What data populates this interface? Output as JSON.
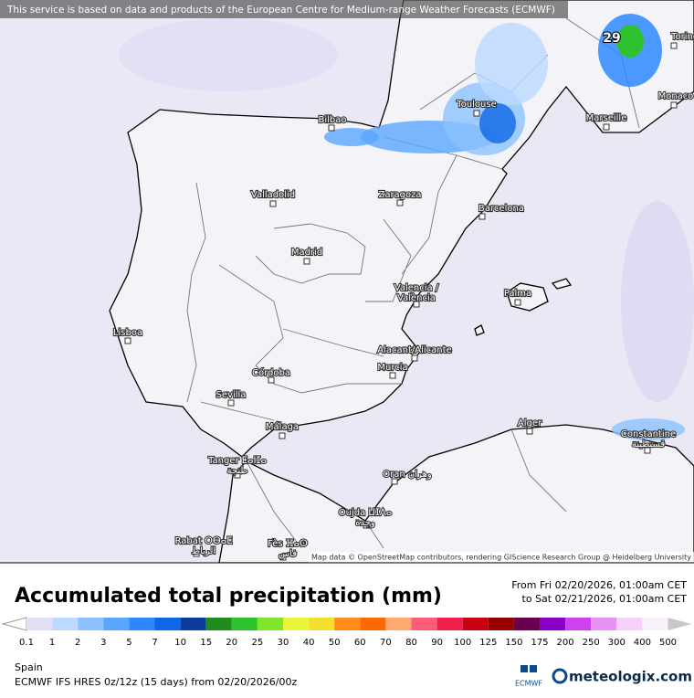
{
  "banner": "This service is based on data and products of the European Centre for Medium-range Weather Forecasts (ECMWF)",
  "map": {
    "max_value": "29",
    "attribution": "Map data © OpenStreetMap contributors, rendering GIScience Research Group @ Heidelberg University",
    "cities": [
      [
        "Bilbao"
      ],
      [
        "Toulouse"
      ],
      [
        "Marseille"
      ],
      [
        "Monaco"
      ],
      [
        "Torino"
      ],
      [
        "Valladolid"
      ],
      [
        "Zaragoza"
      ],
      [
        "Barcelona"
      ],
      [
        "Madrid"
      ],
      [
        "Valencia /",
        "València"
      ],
      [
        "Palma"
      ],
      [
        "Lisboa"
      ],
      [
        "Alacant/Alicante"
      ],
      [
        "Murcia"
      ],
      [
        "Córdoba"
      ],
      [
        "Sevilla"
      ],
      [
        "Málaga"
      ],
      [
        "Tanger ⵟⴰⵏⵊⴰ",
        "طنجة"
      ],
      [
        "Oran وهران"
      ],
      [
        "Oujda ⵡⵊⴷⴰ",
        "وجدة"
      ],
      [
        "Rabat ⵔⴱⴰⵟ",
        "الرباط"
      ],
      [
        "Fès ⴼⴰⵙ",
        "فاس"
      ],
      [
        "Alger"
      ],
      [
        "Constantine",
        "قسنطينة"
      ]
    ]
  },
  "panel": {
    "title": "Accumulated total precipitation (mm)",
    "from": "From Fri 02/20/2026, 01:00am CET",
    "to": "to Sat 02/21/2026, 01:00am CET",
    "region": "Spain",
    "model": "ECMWF IFS HRES 0z/12z (15 days) from  02/20/2026/00z",
    "logo_left": "ECMWF",
    "logo_right": "meteologix.com"
  },
  "legend": {
    "labels": [
      "0.1",
      "1",
      "2",
      "3",
      "5",
      "7",
      "10",
      "15",
      "20",
      "25",
      "30",
      "40",
      "50",
      "60",
      "70",
      "80",
      "90",
      "100",
      "125",
      "150",
      "175",
      "200",
      "250",
      "300",
      "400",
      "500"
    ],
    "colors": [
      "#e2e0f7",
      "#bcd9ff",
      "#8cc2ff",
      "#5aa6ff",
      "#2d88ff",
      "#0f66e6",
      "#0a3d9e",
      "#1f8c1f",
      "#2fc22f",
      "#7fe62b",
      "#e8f53a",
      "#f2e02a",
      "#ff8c1a",
      "#ff6a00",
      "#ffa870",
      "#ff5a7a",
      "#f0204a",
      "#c80010",
      "#960000",
      "#6a0050",
      "#8a00c8",
      "#d040f0",
      "#e890f5",
      "#f5d0f8",
      "#f8f0fa"
    ],
    "overflow_color": "#c8c8c8"
  }
}
